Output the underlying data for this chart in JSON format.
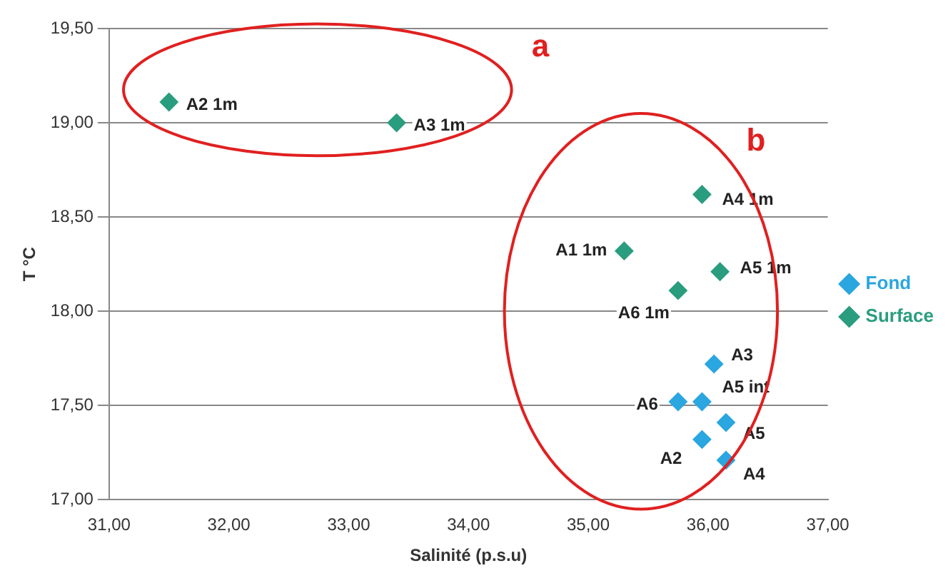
{
  "chart_data": {
    "type": "scatter",
    "xlabel": "Salinité (p.s.u)",
    "ylabel": "T °C",
    "series": [
      {
        "name": "Fond",
        "color": "#2aa6e0",
        "x": [
          36.05,
          35.75,
          35.95,
          36.15,
          35.95,
          36.15
        ],
        "values": [
          17.72,
          17.52,
          17.52,
          17.41,
          17.32,
          17.21
        ]
      },
      {
        "name": "Surface",
        "color": "#2a9d7f",
        "x": [
          31.5,
          33.4,
          35.95,
          35.3,
          36.1,
          35.75
        ],
        "values": [
          19.11,
          19.0,
          18.62,
          18.32,
          18.21,
          18.11
        ]
      }
    ],
    "xlim": [
      31,
      37
    ],
    "ylim": [
      17,
      19.5
    ],
    "xticks": [
      {
        "value": 31,
        "label": "31,00"
      },
      {
        "value": 32,
        "label": "32,00"
      },
      {
        "value": 33,
        "label": "33,00"
      },
      {
        "value": 34,
        "label": "34,00"
      },
      {
        "value": 35,
        "label": "35,00"
      },
      {
        "value": 36,
        "label": "36,00"
      },
      {
        "value": 37,
        "label": "37,00"
      }
    ],
    "yticks": [
      {
        "value": 17,
        "label": "17,00"
      },
      {
        "value": 17.5,
        "label": "17,50"
      },
      {
        "value": 18,
        "label": "18,00"
      },
      {
        "value": 18.5,
        "label": "18,50"
      },
      {
        "value": 19,
        "label": "19,00"
      },
      {
        "value": 19.5,
        "label": "19,50"
      }
    ],
    "grid": "y",
    "legend": "right",
    "marker": "diamond",
    "annotations": [
      {
        "text": "A3",
        "x": 36.05,
        "y": 17.72
      },
      {
        "text": "A6",
        "x": 35.75,
        "y": 17.52
      },
      {
        "text": "A5 int",
        "x": 35.95,
        "y": 17.52
      },
      {
        "text": "A5",
        "x": 36.15,
        "y": 17.41
      },
      {
        "text": "A2",
        "x": 35.95,
        "y": 17.32
      },
      {
        "text": "A4",
        "x": 36.15,
        "y": 17.21
      },
      {
        "text": "A2 1m",
        "x": 31.5,
        "y": 19.11
      },
      {
        "text": "A3 1m",
        "x": 33.4,
        "y": 19.0
      },
      {
        "text": "A4 1m",
        "x": 35.95,
        "y": 18.62
      },
      {
        "text": "A1 1m",
        "x": 35.3,
        "y": 18.32
      },
      {
        "text": "A5 1m",
        "x": 36.1,
        "y": 18.21
      },
      {
        "text": "A6 1m",
        "x": 35.75,
        "y": 18.11
      },
      "a",
      "b"
    ]
  }
}
